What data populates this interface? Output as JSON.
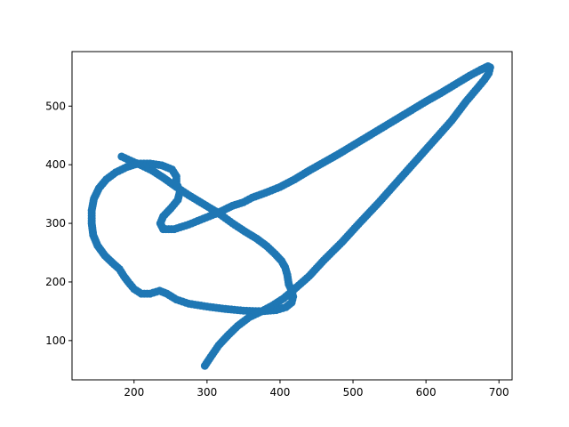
{
  "chart_data": {
    "type": "scatter",
    "title": "",
    "xlabel": "",
    "ylabel": "",
    "xlim": [
      115,
      718
    ],
    "ylim": [
      33,
      593
    ],
    "xticks": [
      200,
      300,
      400,
      500,
      600,
      700
    ],
    "yticks": [
      100,
      200,
      300,
      400,
      500
    ],
    "xtick_labels": [
      "200",
      "300",
      "400",
      "500",
      "600",
      "700"
    ],
    "ytick_labels": [
      "100",
      "200",
      "300",
      "400",
      "500"
    ],
    "grid": false,
    "legend": "none",
    "marker_color": "#1f77b4",
    "trajectory_waypoints": [
      [
        183,
        414
      ],
      [
        195,
        407
      ],
      [
        210,
        399
      ],
      [
        225,
        390
      ],
      [
        240,
        378
      ],
      [
        258,
        362
      ],
      [
        275,
        348
      ],
      [
        295,
        333
      ],
      [
        315,
        318
      ],
      [
        335,
        300
      ],
      [
        352,
        286
      ],
      [
        368,
        274
      ],
      [
        382,
        261
      ],
      [
        393,
        248
      ],
      [
        402,
        236
      ],
      [
        407,
        225
      ],
      [
        410,
        212
      ],
      [
        412,
        196
      ],
      [
        416,
        185
      ],
      [
        418,
        175
      ],
      [
        416,
        165
      ],
      [
        408,
        157
      ],
      [
        395,
        152
      ],
      [
        375,
        150
      ],
      [
        350,
        151
      ],
      [
        325,
        154
      ],
      [
        300,
        158
      ],
      [
        275,
        163
      ],
      [
        258,
        170
      ],
      [
        245,
        180
      ],
      [
        235,
        185
      ],
      [
        222,
        180
      ],
      [
        210,
        180
      ],
      [
        200,
        188
      ],
      [
        192,
        200
      ],
      [
        186,
        210
      ],
      [
        180,
        222
      ],
      [
        170,
        233
      ],
      [
        160,
        245
      ],
      [
        150,
        262
      ],
      [
        144,
        280
      ],
      [
        142,
        300
      ],
      [
        142,
        322
      ],
      [
        145,
        342
      ],
      [
        152,
        360
      ],
      [
        162,
        375
      ],
      [
        175,
        387
      ],
      [
        190,
        396
      ],
      [
        205,
        402
      ],
      [
        222,
        402
      ],
      [
        238,
        399
      ],
      [
        252,
        392
      ],
      [
        258,
        380
      ],
      [
        258,
        368
      ],
      [
        263,
        355
      ],
      [
        260,
        340
      ],
      [
        250,
        325
      ],
      [
        240,
        312
      ],
      [
        236,
        300
      ],
      [
        240,
        290
      ],
      [
        255,
        290
      ],
      [
        275,
        298
      ],
      [
        295,
        308
      ],
      [
        315,
        318
      ],
      [
        335,
        330
      ],
      [
        350,
        336
      ],
      [
        362,
        344
      ],
      [
        380,
        352
      ],
      [
        400,
        362
      ],
      [
        420,
        375
      ],
      [
        440,
        390
      ],
      [
        460,
        404
      ],
      [
        480,
        418
      ],
      [
        500,
        433
      ],
      [
        520,
        448
      ],
      [
        540,
        463
      ],
      [
        560,
        478
      ],
      [
        580,
        493
      ],
      [
        600,
        508
      ],
      [
        620,
        522
      ],
      [
        640,
        537
      ],
      [
        660,
        552
      ],
      [
        675,
        562
      ],
      [
        685,
        568
      ],
      [
        688,
        566
      ],
      [
        686,
        556
      ],
      [
        680,
        545
      ],
      [
        670,
        530
      ],
      [
        655,
        508
      ],
      [
        635,
        475
      ],
      [
        610,
        440
      ],
      [
        585,
        405
      ],
      [
        560,
        370
      ],
      [
        535,
        335
      ],
      [
        510,
        302
      ],
      [
        485,
        268
      ],
      [
        460,
        237
      ],
      [
        440,
        210
      ],
      [
        420,
        188
      ],
      [
        405,
        172
      ],
      [
        390,
        160
      ],
      [
        375,
        150
      ],
      [
        358,
        140
      ],
      [
        342,
        125
      ],
      [
        328,
        108
      ],
      [
        316,
        92
      ],
      [
        305,
        72
      ],
      [
        297,
        57
      ]
    ]
  }
}
